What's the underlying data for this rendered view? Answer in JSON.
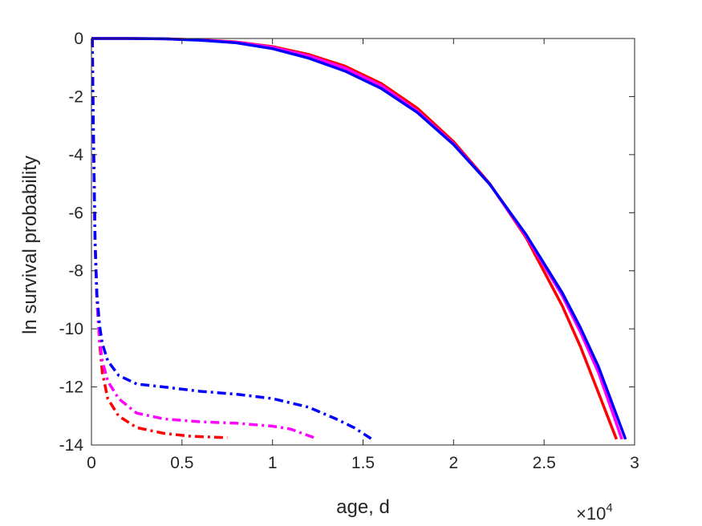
{
  "chart_data": {
    "type": "line",
    "title": "",
    "xlabel": "age, d",
    "ylabel": "ln survival probability",
    "x_exponent_label": "×10",
    "x_exponent_power": "4",
    "xlim": [
      0,
      30000
    ],
    "ylim": [
      -14,
      0
    ],
    "xticks": [
      0,
      5000,
      10000,
      15000,
      20000,
      25000,
      30000
    ],
    "xtick_labels": [
      "0",
      "0.5",
      "1",
      "1.5",
      "2",
      "2.5",
      "3"
    ],
    "yticks": [
      0,
      -2,
      -4,
      -6,
      -8,
      -10,
      -12,
      -14
    ],
    "ytick_labels": [
      "0",
      "-2",
      "-4",
      "-6",
      "-8",
      "-10",
      "-12",
      "-14"
    ],
    "grid": false,
    "legend": "none",
    "series": [
      {
        "color": "#ff0000",
        "style": "solid",
        "x": [
          0,
          100,
          2000,
          4000,
          6000,
          8000,
          10000,
          12000,
          14000,
          16000,
          18000,
          20000,
          22000,
          24000,
          26000,
          27000,
          28000,
          29000
        ],
        "y": [
          0,
          0,
          0,
          -0.01,
          -0.05,
          -0.12,
          -0.28,
          -0.55,
          -0.95,
          -1.55,
          -2.4,
          -3.55,
          -5.0,
          -6.85,
          -9.2,
          -10.6,
          -12.2,
          -13.8
        ]
      },
      {
        "color": "#ff00ff",
        "style": "solid",
        "x": [
          0,
          100,
          2000,
          4000,
          6000,
          8000,
          10000,
          12000,
          14000,
          16000,
          18000,
          20000,
          22000,
          24000,
          26000,
          27000,
          28000,
          29300
        ],
        "y": [
          0,
          0,
          0,
          -0.01,
          -0.05,
          -0.13,
          -0.3,
          -0.6,
          -1.02,
          -1.62,
          -2.5,
          -3.62,
          -5.02,
          -6.8,
          -8.85,
          -10.1,
          -11.5,
          -13.8
        ]
      },
      {
        "color": "#0000ff",
        "style": "solid",
        "x": [
          0,
          100,
          2000,
          4000,
          6000,
          8000,
          10000,
          12000,
          14000,
          16000,
          18000,
          20000,
          22000,
          24000,
          26000,
          27000,
          28000,
          29500
        ],
        "y": [
          0,
          0,
          0,
          -0.01,
          -0.06,
          -0.15,
          -0.35,
          -0.68,
          -1.12,
          -1.72,
          -2.55,
          -3.65,
          -5.02,
          -6.75,
          -8.75,
          -9.95,
          -11.3,
          -13.8
        ]
      },
      {
        "color": "#ff0000",
        "style": "dashdot",
        "x": [
          50,
          60,
          100,
          150,
          200,
          300,
          450,
          600,
          900,
          1500,
          2500,
          4000,
          5500,
          7500
        ],
        "y": [
          0,
          -1,
          -3,
          -5,
          -7,
          -9,
          -10.5,
          -11.5,
          -12.4,
          -13.0,
          -13.4,
          -13.6,
          -13.7,
          -13.75
        ]
      },
      {
        "color": "#ff00ff",
        "style": "dashdot",
        "x": [
          50,
          60,
          100,
          150,
          200,
          300,
          450,
          600,
          900,
          1500,
          2500,
          4000,
          6000,
          8000,
          10000,
          11000,
          12300
        ],
        "y": [
          0,
          -1,
          -3,
          -5,
          -7,
          -9,
          -10.4,
          -11.1,
          -11.8,
          -12.4,
          -12.9,
          -13.1,
          -13.2,
          -13.25,
          -13.35,
          -13.45,
          -13.75
        ]
      },
      {
        "color": "#0000ff",
        "style": "dashdot",
        "x": [
          50,
          60,
          100,
          150,
          200,
          300,
          450,
          600,
          900,
          1500,
          2500,
          4000,
          6000,
          8000,
          10000,
          12000,
          13500,
          14500,
          15500
        ],
        "y": [
          0,
          -1,
          -3,
          -5,
          -7,
          -8.8,
          -9.9,
          -10.5,
          -11.1,
          -11.6,
          -11.9,
          -12.0,
          -12.15,
          -12.25,
          -12.4,
          -12.7,
          -13.1,
          -13.4,
          -13.8
        ]
      }
    ]
  }
}
